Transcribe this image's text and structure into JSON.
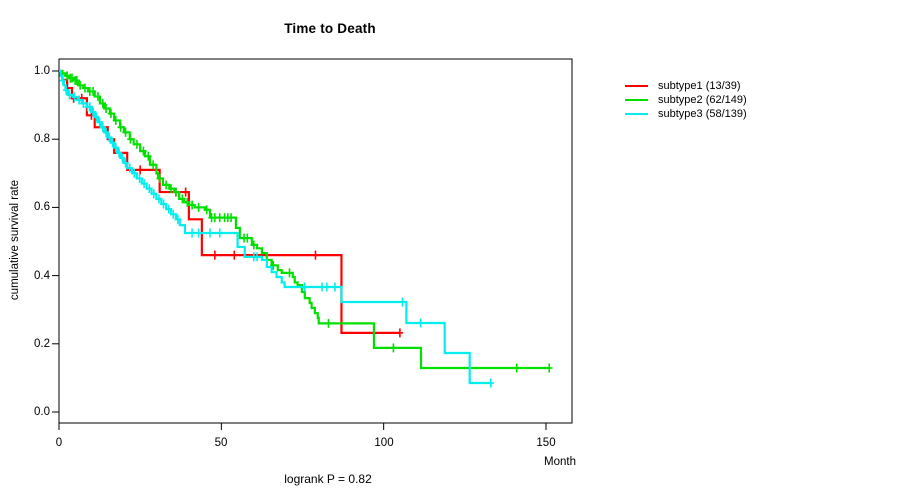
{
  "chart_data": {
    "type": "line",
    "variant": "kaplan-meier-step-curve",
    "title": "Time to Death",
    "xlabel": "Month",
    "ylabel": "cumulative survival rate",
    "annotation": "logrank P = 0.82",
    "xlim": [
      0,
      158
    ],
    "ylim": [
      0,
      1.0
    ],
    "xticks": [
      "0",
      "50",
      "100",
      "150"
    ],
    "yticks": [
      "0.0",
      "0.2",
      "0.4",
      "0.6",
      "0.8",
      "1.0"
    ],
    "grid": false,
    "legend_position": "right-outside",
    "axis_color": "#000000",
    "series": [
      {
        "name": "subtype1 (13/39)",
        "color": "#ff0000",
        "events": 13,
        "n": 39,
        "end": 105,
        "steps": [
          [
            0,
            1.0
          ],
          [
            1,
            0.974
          ],
          [
            2.5,
            0.95
          ],
          [
            4,
            0.92
          ],
          [
            8.6,
            0.87
          ],
          [
            11,
            0.835
          ],
          [
            15,
            0.8
          ],
          [
            17,
            0.76
          ],
          [
            21,
            0.71
          ],
          [
            31,
            0.645
          ],
          [
            40,
            0.565
          ],
          [
            44,
            0.46
          ],
          [
            87,
            0.232
          ]
        ],
        "censors": [
          4.5,
          7,
          10,
          25,
          30,
          36,
          39,
          48,
          54,
          79,
          105
        ]
      },
      {
        "name": "subtype2 (62/149)",
        "color": "#00e000",
        "events": 62,
        "n": 149,
        "end": 151,
        "steps": [
          [
            0,
            1.0
          ],
          [
            1,
            0.993
          ],
          [
            2,
            0.986
          ],
          [
            3,
            0.979
          ],
          [
            4.5,
            0.972
          ],
          [
            6,
            0.958
          ],
          [
            7.5,
            0.95
          ],
          [
            9,
            0.94
          ],
          [
            11,
            0.925
          ],
          [
            12.6,
            0.905
          ],
          [
            14,
            0.89
          ],
          [
            15.7,
            0.875
          ],
          [
            17,
            0.855
          ],
          [
            18.8,
            0.835
          ],
          [
            20,
            0.82
          ],
          [
            21.8,
            0.8
          ],
          [
            23,
            0.785
          ],
          [
            25,
            0.765
          ],
          [
            26.5,
            0.75
          ],
          [
            28,
            0.725
          ],
          [
            30,
            0.7
          ],
          [
            30.5,
            0.685
          ],
          [
            32,
            0.666
          ],
          [
            34,
            0.655
          ],
          [
            35.5,
            0.645
          ],
          [
            37,
            0.625
          ],
          [
            38.5,
            0.615
          ],
          [
            40,
            0.607
          ],
          [
            41.8,
            0.6
          ],
          [
            45,
            0.593
          ],
          [
            46.5,
            0.57
          ],
          [
            54.5,
            0.54
          ],
          [
            55.7,
            0.51
          ],
          [
            59.4,
            0.49
          ],
          [
            61,
            0.48
          ],
          [
            62.5,
            0.466
          ],
          [
            64,
            0.446
          ],
          [
            65.5,
            0.43
          ],
          [
            67.4,
            0.416
          ],
          [
            68.6,
            0.408
          ],
          [
            72,
            0.396
          ],
          [
            72.6,
            0.38
          ],
          [
            73.5,
            0.372
          ],
          [
            74.8,
            0.352
          ],
          [
            75.7,
            0.334
          ],
          [
            77.2,
            0.32
          ],
          [
            77.8,
            0.305
          ],
          [
            78.8,
            0.29
          ],
          [
            79.7,
            0.276
          ],
          [
            80,
            0.26
          ],
          [
            97,
            0.188
          ],
          [
            111.5,
            0.129
          ]
        ],
        "censors": [
          2.5,
          3.5,
          4,
          5,
          5.5,
          6.5,
          8,
          9.5,
          10.5,
          12,
          13.5,
          14.5,
          16,
          17.5,
          19,
          20.5,
          22,
          24,
          26,
          27.5,
          29,
          31,
          33,
          34.5,
          36,
          38,
          39.5,
          41,
          43,
          45.5,
          47,
          48,
          49.5,
          51,
          52,
          53,
          57,
          58,
          60,
          66,
          71,
          83,
          103,
          141,
          151
        ]
      },
      {
        "name": "subtype3 (58/139)",
        "color": "#00eeee",
        "events": 58,
        "n": 139,
        "end": 133,
        "steps": [
          [
            0,
            1.0
          ],
          [
            0.5,
            0.986
          ],
          [
            1,
            0.972
          ],
          [
            1.5,
            0.958
          ],
          [
            2,
            0.944
          ],
          [
            2.8,
            0.93
          ],
          [
            4.3,
            0.924
          ],
          [
            5.8,
            0.915
          ],
          [
            7,
            0.905
          ],
          [
            8.6,
            0.895
          ],
          [
            10,
            0.88
          ],
          [
            11,
            0.865
          ],
          [
            12,
            0.85
          ],
          [
            13,
            0.835
          ],
          [
            14,
            0.82
          ],
          [
            15,
            0.805
          ],
          [
            16,
            0.79
          ],
          [
            17,
            0.775
          ],
          [
            18,
            0.76
          ],
          [
            19,
            0.745
          ],
          [
            20,
            0.73
          ],
          [
            21,
            0.715
          ],
          [
            22.5,
            0.7
          ],
          [
            24,
            0.685
          ],
          [
            25.5,
            0.67
          ],
          [
            27,
            0.655
          ],
          [
            28.5,
            0.64
          ],
          [
            30,
            0.625
          ],
          [
            31.5,
            0.61
          ],
          [
            33,
            0.595
          ],
          [
            34.5,
            0.58
          ],
          [
            36,
            0.565
          ],
          [
            37.2,
            0.548
          ],
          [
            38.8,
            0.525
          ],
          [
            55,
            0.484
          ],
          [
            57.2,
            0.455
          ],
          [
            62.5,
            0.446
          ],
          [
            64,
            0.425
          ],
          [
            65.5,
            0.41
          ],
          [
            67,
            0.396
          ],
          [
            68.6,
            0.38
          ],
          [
            69.5,
            0.3665
          ],
          [
            87,
            0.3226
          ],
          [
            107,
            0.261
          ],
          [
            118.8,
            0.173
          ],
          [
            126.5,
            0.085
          ]
        ],
        "censors": [
          1.2,
          2.2,
          3.2,
          4.8,
          6.2,
          7.5,
          8.8,
          9.5,
          10.5,
          11.5,
          12.5,
          13.5,
          14.5,
          15.5,
          16.5,
          17.5,
          18.5,
          19.5,
          20.5,
          21.8,
          23.2,
          24.8,
          26.2,
          27.8,
          29.2,
          30.8,
          32.2,
          33.8,
          35.2,
          36.6,
          41,
          43,
          46.5,
          49.5,
          60,
          61,
          75.7,
          81,
          82.5,
          85,
          105.8,
          111.4,
          133
        ]
      }
    ]
  }
}
